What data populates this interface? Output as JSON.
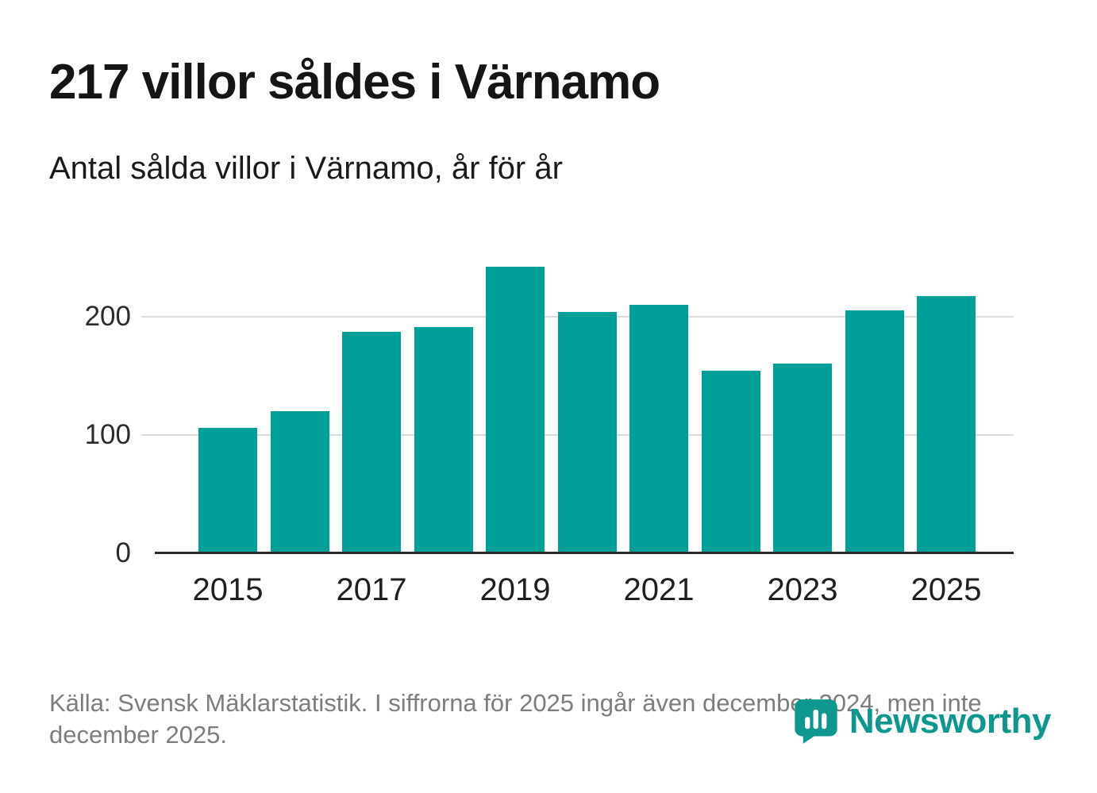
{
  "title": "217 villor såldes i Värnamo",
  "subtitle": "Antal sålda villor i Värnamo, år för år",
  "footer": {
    "source": "Källa: Svensk Mäklarstatistik. I siffrorna för 2025 ingår även december 2024, men inte december 2025.",
    "brand": "Newsworthy"
  },
  "colors": {
    "bar": "#00A099",
    "logo": "#0E978F",
    "axis": "#2b2b2b",
    "grid": "#dcdcdc"
  },
  "chart_data": {
    "type": "bar",
    "title": "Antal sålda villor i Värnamo, år för år",
    "categories": [
      2015,
      2016,
      2017,
      2018,
      2019,
      2020,
      2021,
      2022,
      2023,
      2024,
      2025
    ],
    "values": [
      106,
      120,
      187,
      191,
      242,
      204,
      210,
      154,
      160,
      205,
      217
    ],
    "xlabel": "",
    "ylabel": "",
    "ylim": [
      0,
      260
    ],
    "yticks": [
      0,
      100,
      200
    ],
    "xticks": [
      "2015",
      "2017",
      "2019",
      "2021",
      "2023",
      "2025"
    ],
    "grid": "horizontal",
    "legend": "none",
    "bar_color": "#00A099"
  }
}
